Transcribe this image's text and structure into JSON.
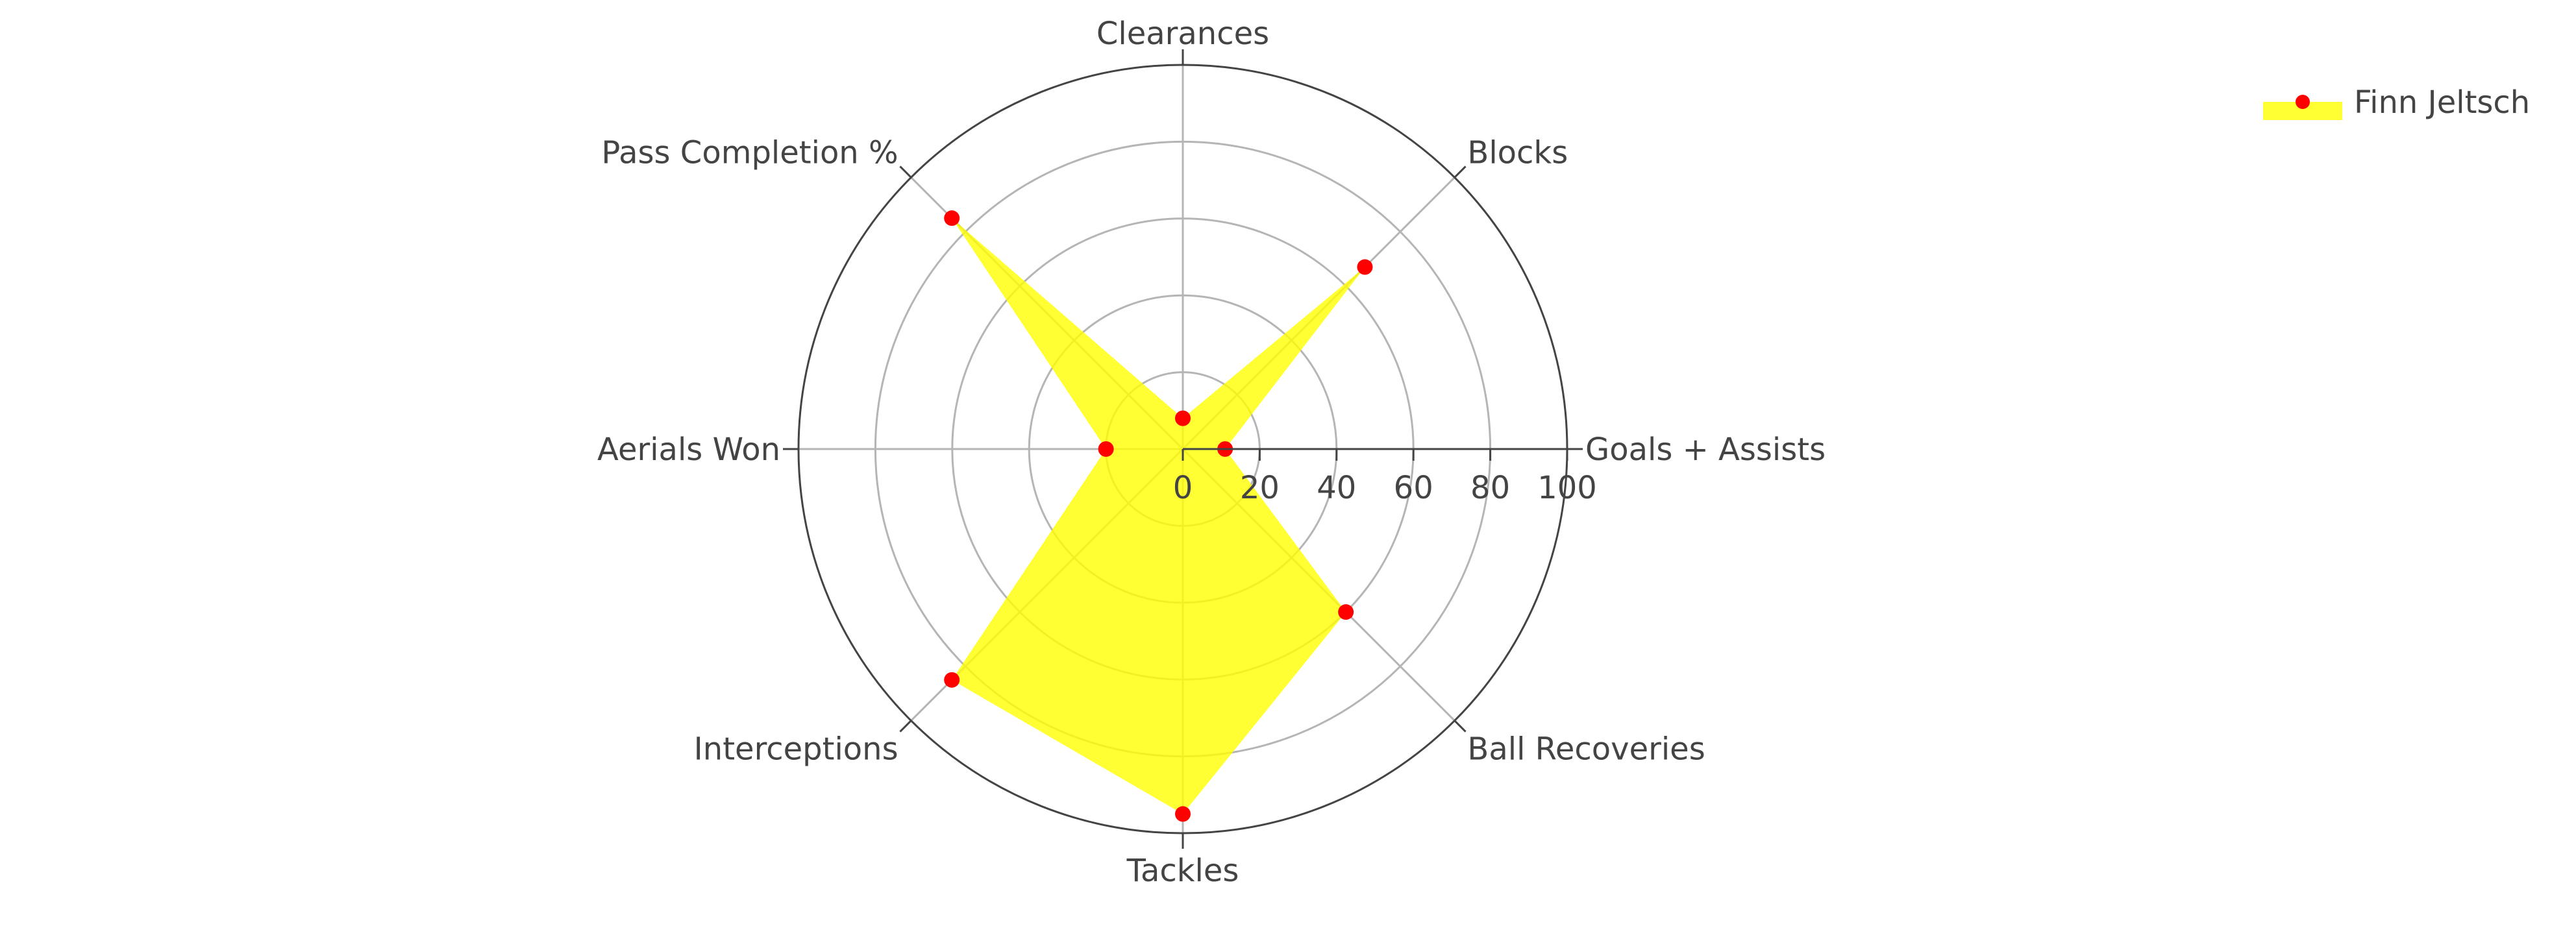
{
  "chart_data": {
    "type": "radar",
    "categories": [
      "Goals + Assists",
      "Blocks",
      "Clearances",
      "Pass Completion %",
      "Aerials Won",
      "Interceptions",
      "Tackles",
      "Ball Recoveries"
    ],
    "series": [
      {
        "name": "Finn Jeltsch",
        "values": [
          11,
          67,
          8,
          85,
          20,
          85,
          95,
          60
        ],
        "fill_color": "#ffff00",
        "fill_opacity": 0.8,
        "marker_color": "#ff0000"
      }
    ],
    "radial_axis": {
      "range": [
        0,
        100
      ],
      "tick_values": [
        0,
        20,
        40,
        60,
        80,
        100
      ],
      "tick_labels": [
        "0",
        "20",
        "40",
        "60",
        "80",
        "100"
      ],
      "grid": true
    },
    "legend_position": "top-right",
    "colors": {
      "grid": "#b5b5b5",
      "outer_ring": "#444444",
      "text": "#444444"
    }
  }
}
